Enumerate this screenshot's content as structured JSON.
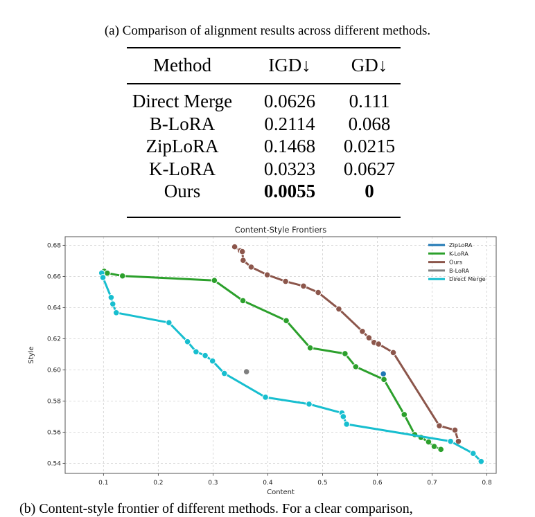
{
  "caption_a": "(a) Comparison of alignment results across different methods.",
  "table": {
    "headers": [
      "Method",
      "IGD↓",
      "GD↓"
    ],
    "rows": [
      {
        "method": "Direct Merge",
        "igd": "0.0626",
        "gd": "0.111"
      },
      {
        "method": "B-LoRA",
        "igd": "0.2114",
        "gd": "0.068"
      },
      {
        "method": "ZipLoRA",
        "igd": "0.1468",
        "gd": "0.0215"
      },
      {
        "method": "K-LoRA",
        "igd": "0.0323",
        "gd": "0.0627"
      },
      {
        "method": "Ours",
        "igd": "0.0055",
        "gd": "0",
        "bold": true
      }
    ]
  },
  "caption_b": "(b) Content-style frontier of different methods. For a clear comparison,",
  "chart_data": {
    "type": "line",
    "title": "Content-Style Frontiers",
    "xlabel": "Content",
    "ylabel": "Style",
    "xlim": [
      0.03,
      0.817
    ],
    "ylim": [
      0.5335,
      0.6855
    ],
    "xticks": [
      0.1,
      0.2,
      0.3,
      0.4,
      0.5,
      0.6,
      0.7,
      0.8
    ],
    "xtick_labels": [
      "0.1",
      "0.2",
      "0.3",
      "0.4",
      "0.5",
      "0.6",
      "0.7",
      "0.8"
    ],
    "yticks": [
      0.54,
      0.56,
      0.58,
      0.6,
      0.62,
      0.64,
      0.66,
      0.68
    ],
    "ytick_labels": [
      "0.54",
      "0.56",
      "0.58",
      "0.60",
      "0.62",
      "0.64",
      "0.66",
      "0.68"
    ],
    "grid": true,
    "legend_position": "top-right",
    "series": [
      {
        "name": "ZipLoRA",
        "color": "#1f77b4",
        "x": [
          0.611
        ],
        "y": [
          0.5974
        ]
      },
      {
        "name": "K-LoRA",
        "color": "#2ca02c",
        "x": [
          0.1012,
          0.107,
          0.1347,
          0.3025,
          0.3546,
          0.4337,
          0.4774,
          0.541,
          0.5606,
          0.6121,
          0.6491,
          0.6683,
          0.6797,
          0.6936,
          0.7038,
          0.716
        ],
        "y": [
          0.6633,
          0.6621,
          0.6603,
          0.6574,
          0.6444,
          0.6316,
          0.6141,
          0.6104,
          0.602,
          0.5938,
          0.5713,
          0.5584,
          0.5566,
          0.5537,
          0.5508,
          0.5489
        ]
      },
      {
        "name": "Ours",
        "color": "#8c564b",
        "x": [
          0.3395,
          0.35,
          0.3535,
          0.355,
          0.3697,
          0.399,
          0.4325,
          0.4652,
          0.492,
          0.5297,
          0.5727,
          0.5847,
          0.594,
          0.6022,
          0.6291,
          0.7132,
          0.7417,
          0.748
        ],
        "y": [
          0.679,
          0.6766,
          0.6759,
          0.6703,
          0.666,
          0.661,
          0.6568,
          0.6538,
          0.6497,
          0.6391,
          0.6247,
          0.6206,
          0.6176,
          0.6166,
          0.6111,
          0.5641,
          0.5613,
          0.5541
        ]
      },
      {
        "name": "B-LoRA",
        "color": "#7f7f7f",
        "x": [
          0.3611
        ],
        "y": [
          0.5988
        ]
      },
      {
        "name": "Direct Merge",
        "color": "#17becf",
        "x": [
          0.0967,
          0.099,
          0.114,
          0.117,
          0.1233,
          0.2196,
          0.2534,
          0.269,
          0.2857,
          0.2991,
          0.3207,
          0.3958,
          0.4754,
          0.5354,
          0.5378,
          0.5439,
          0.7337,
          0.775,
          0.7895
        ],
        "y": [
          0.6622,
          0.6593,
          0.6465,
          0.6423,
          0.6367,
          0.6303,
          0.6181,
          0.6116,
          0.6092,
          0.6057,
          0.5977,
          0.5824,
          0.578,
          0.5723,
          0.57,
          0.5651,
          0.5541,
          0.5463,
          0.5412
        ]
      }
    ]
  }
}
